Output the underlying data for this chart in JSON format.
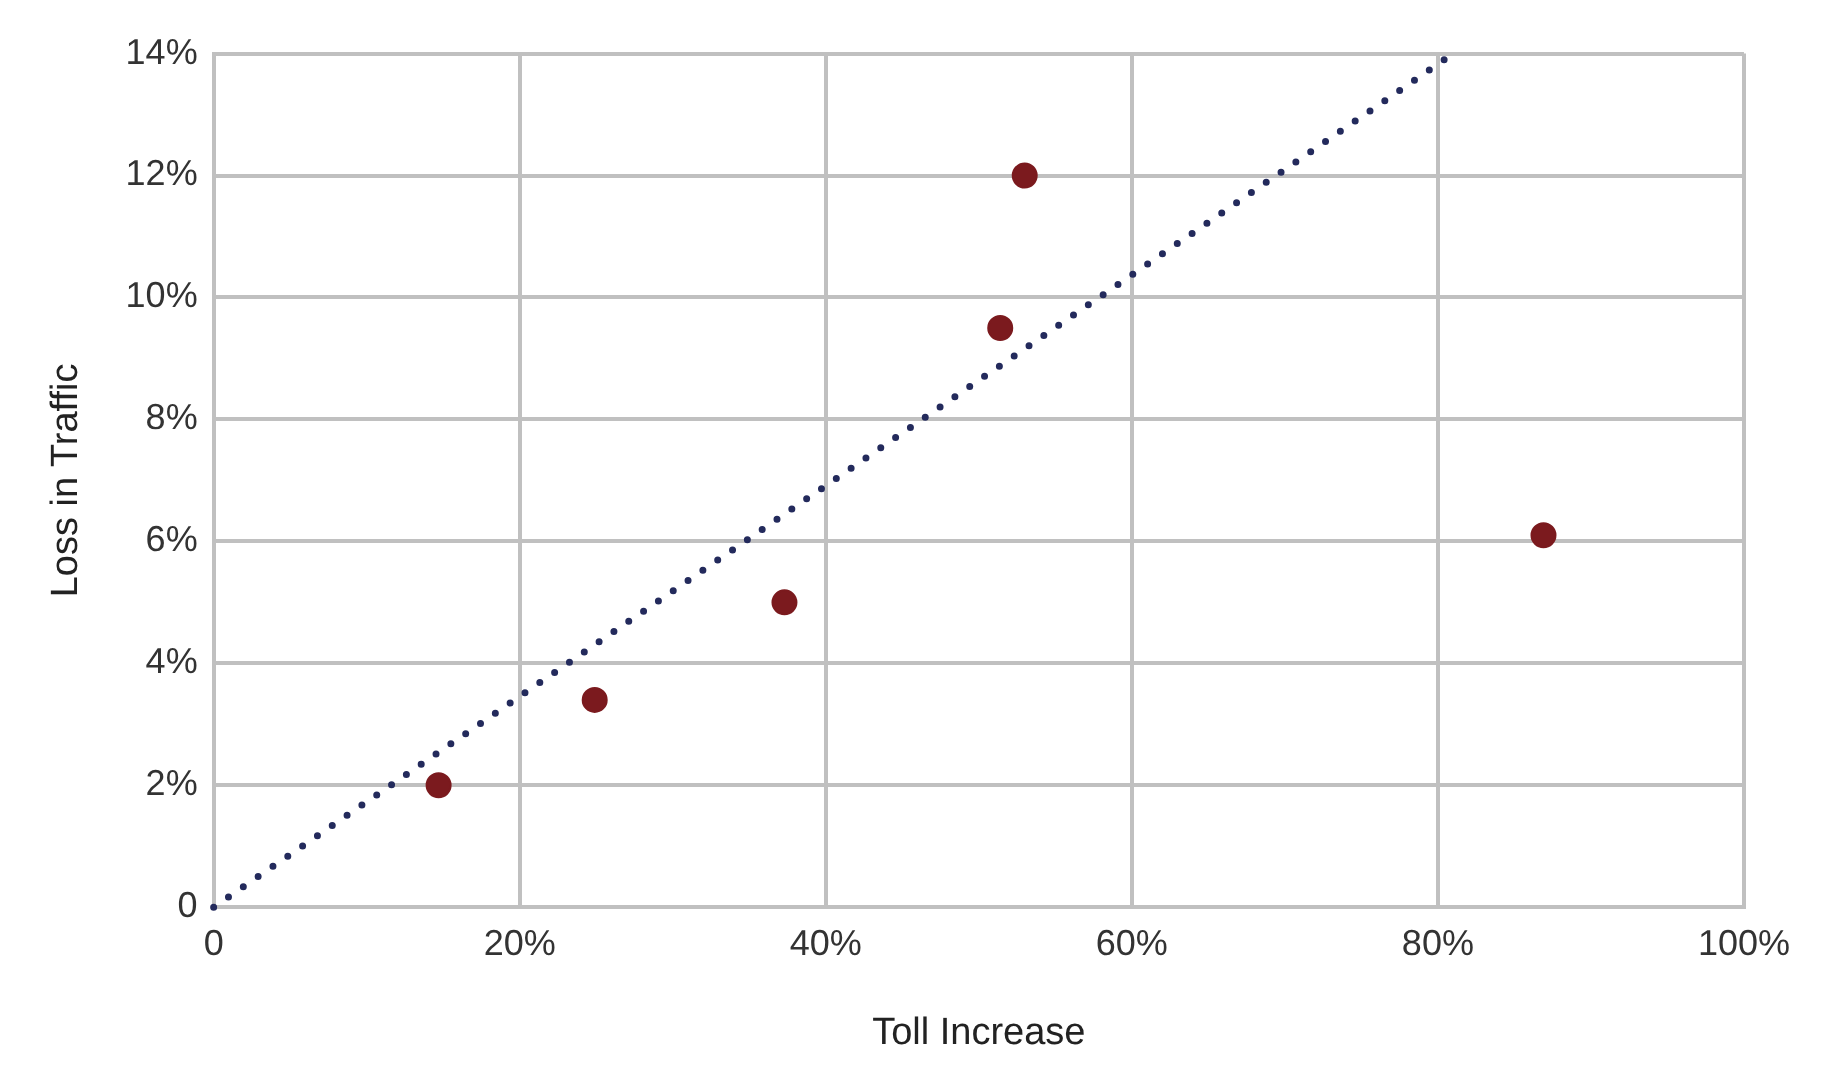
{
  "chart_data": {
    "type": "scatter",
    "xlabel": "Toll Increase",
    "ylabel": "Loss in Traffic",
    "xlim": [
      0,
      100
    ],
    "ylim": [
      0,
      14
    ],
    "xticks": [
      0,
      {
        "value": 20,
        "label": "20%"
      },
      {
        "value": 40,
        "label": "40%"
      },
      {
        "value": 60,
        "label": "60%"
      },
      {
        "value": 80,
        "label": "80%"
      },
      {
        "value": 100,
        "label": "100%"
      }
    ],
    "yticks": [
      0,
      {
        "value": 2,
        "label": "2%"
      },
      {
        "value": 4,
        "label": "4%"
      },
      {
        "value": 6,
        "label": "6%"
      },
      {
        "value": 8,
        "label": "8%"
      },
      {
        "value": 10,
        "label": "10%"
      },
      {
        "value": 12,
        "label": "12%"
      },
      {
        "value": 14,
        "label": "14%"
      }
    ],
    "grid": true,
    "marker": "circle",
    "series": [
      {
        "type": "scatter",
        "color": "#7b1a1e",
        "x": [
          14.7,
          24.9,
          37.3,
          51.4,
          53.0,
          86.9
        ],
        "values": [
          2,
          3.4,
          5,
          9.5,
          12,
          6.1
        ]
      },
      {
        "type": "line",
        "color": "#232a5c",
        "line_style": "dotted",
        "marker": "none",
        "x": [
          0,
          81
        ],
        "values": [
          0,
          14
        ]
      }
    ]
  }
}
